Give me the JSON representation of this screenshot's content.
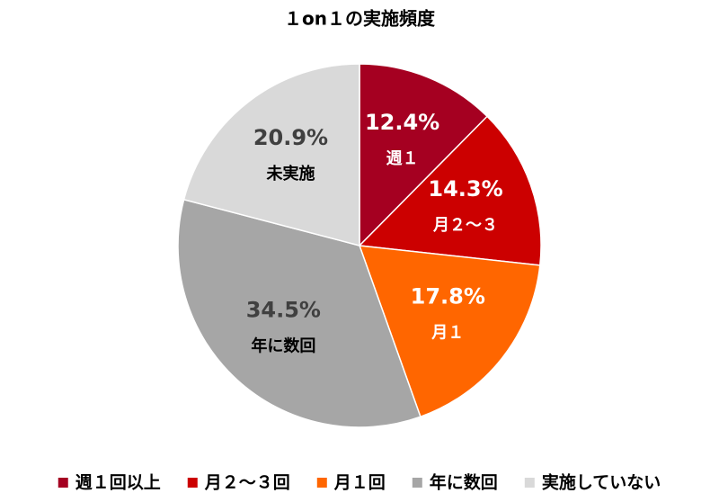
{
  "chart_data": {
    "type": "pie",
    "title": "１on１の実施頻度",
    "categories": [
      "週１回以上",
      "月２～３回",
      "月１回",
      "年に数回",
      "実施していない"
    ],
    "slice_labels": [
      "週１",
      "月２～３",
      "月１",
      "年に数回",
      "未実施"
    ],
    "values": [
      12.4,
      14.3,
      17.8,
      34.5,
      20.9
    ],
    "value_labels": [
      "12.4%",
      "14.3%",
      "17.8%",
      "34.5%",
      "20.9%"
    ],
    "colors": [
      "#a50021",
      "#cc0000",
      "#ff6600",
      "#a6a6a6",
      "#d9d9d9"
    ],
    "legend": "bottom"
  }
}
